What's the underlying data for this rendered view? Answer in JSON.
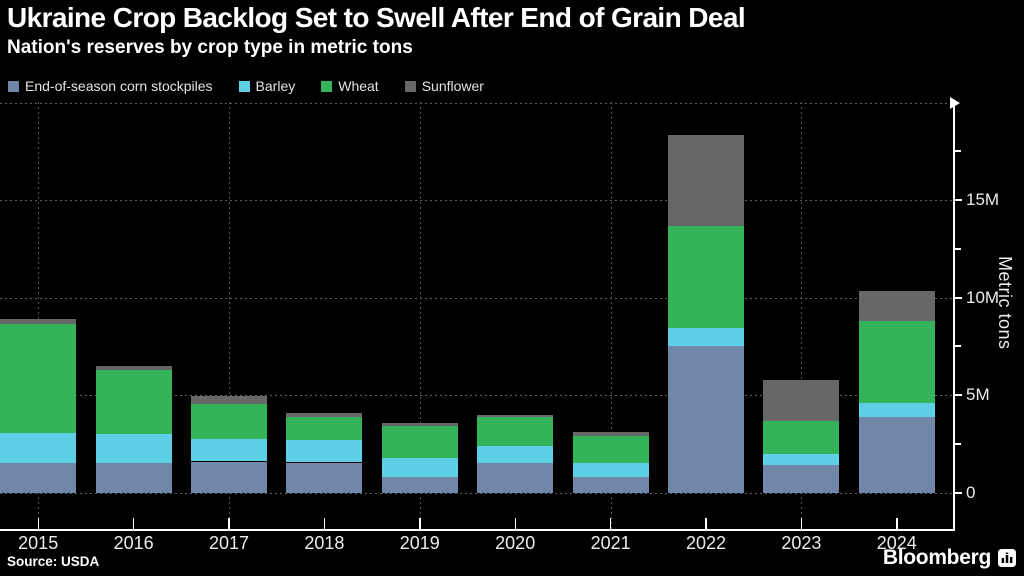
{
  "header": {
    "title": "Ukraine Crop Backlog Set to Swell After End of Grain Deal",
    "subtitle": "Nation's reserves by crop type in metric tons"
  },
  "legend": [
    {
      "label": "End-of-season corn stockpiles",
      "color": "#7087aa"
    },
    {
      "label": "Barley",
      "color": "#5ed0e5"
    },
    {
      "label": "Wheat",
      "color": "#34b45a"
    },
    {
      "label": "Sunflower",
      "color": "#676767"
    }
  ],
  "chart_data": {
    "type": "bar",
    "stacked": true,
    "title": "Ukraine Crop Backlog Set to Swell After End of Grain Deal",
    "subtitle": "Nation's reserves by crop type in metric tons",
    "xlabel": "",
    "ylabel": "Metric tons",
    "unit": "million metric tons",
    "ylim": [
      0,
      20
    ],
    "categories": [
      "2015",
      "2016",
      "2017",
      "2018",
      "2019",
      "2020",
      "2021",
      "2022",
      "2023",
      "2024"
    ],
    "series": [
      {
        "key": "corn",
        "name": "End-of-season corn stockpiles",
        "color": "#7087aa",
        "values": [
          1.5,
          1.5,
          1.6,
          1.55,
          0.8,
          1.5,
          0.8,
          7.5,
          1.4,
          3.9
        ]
      },
      {
        "key": "barley",
        "name": "Barley",
        "color": "#5ed0e5",
        "values": [
          1.55,
          1.5,
          1.15,
          1.15,
          1.0,
          0.9,
          0.7,
          0.95,
          0.6,
          0.7
        ]
      },
      {
        "key": "wheat",
        "name": "Wheat",
        "color": "#34b45a",
        "values": [
          5.6,
          3.3,
          1.8,
          1.2,
          1.6,
          1.5,
          1.4,
          5.2,
          1.7,
          4.2
        ]
      },
      {
        "key": "sunflower",
        "name": "Sunflower",
        "color": "#676767",
        "values": [
          0.25,
          0.2,
          0.4,
          0.2,
          0.15,
          0.1,
          0.2,
          4.7,
          2.1,
          1.55
        ]
      }
    ],
    "totals": [
      8.9,
      6.5,
      4.95,
      4.1,
      3.55,
      4.0,
      3.1,
      18.35,
      5.8,
      10.35
    ],
    "y_ticks": [
      {
        "value": 0,
        "label": "0"
      },
      {
        "value": 5,
        "label": "5M"
      },
      {
        "value": 10,
        "label": "10M"
      },
      {
        "value": 15,
        "label": "15M"
      }
    ],
    "y_minor_ticks": [
      2.5,
      7.5,
      12.5,
      17.5
    ],
    "grid_values": [
      0,
      5,
      10,
      15,
      20
    ],
    "x_grid_years": [
      "2015",
      "2017",
      "2019",
      "2021",
      "2023"
    ],
    "legend_position": "top",
    "grid": true
  },
  "footer": {
    "source": "Source: USDA",
    "brand": "Bloomberg"
  }
}
